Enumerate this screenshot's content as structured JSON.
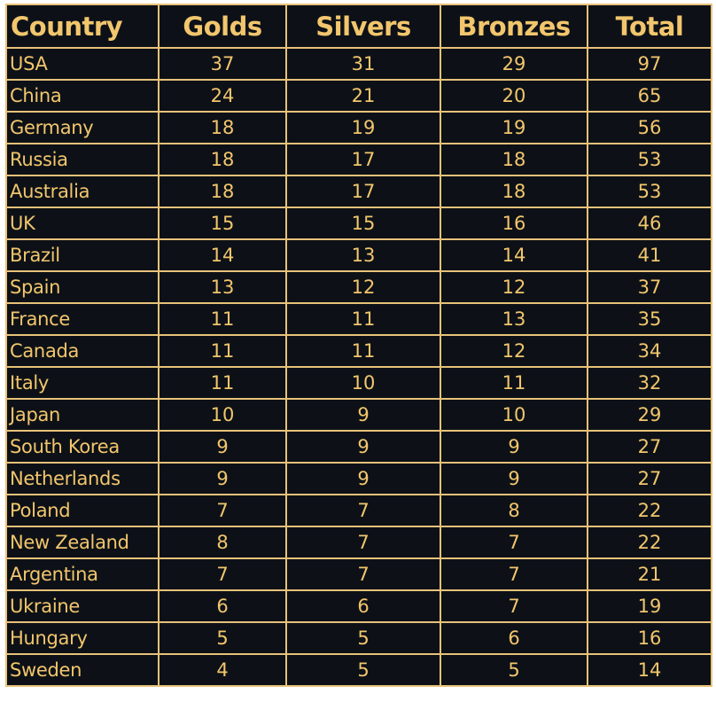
{
  "table": {
    "headers": {
      "country": "Country",
      "golds": "Golds",
      "silvers": "Silvers",
      "bronzes": "Bronzes",
      "total": "Total"
    },
    "rows": [
      {
        "country": "USA",
        "golds": "37",
        "silvers": "31",
        "bronzes": "29",
        "total": "97"
      },
      {
        "country": "China",
        "golds": "24",
        "silvers": "21",
        "bronzes": "20",
        "total": "65"
      },
      {
        "country": "Germany",
        "golds": "18",
        "silvers": "19",
        "bronzes": "19",
        "total": "56"
      },
      {
        "country": "Russia",
        "golds": "18",
        "silvers": "17",
        "bronzes": "18",
        "total": "53"
      },
      {
        "country": "Australia",
        "golds": "18",
        "silvers": "17",
        "bronzes": "18",
        "total": "53"
      },
      {
        "country": "UK",
        "golds": "15",
        "silvers": "15",
        "bronzes": "16",
        "total": "46"
      },
      {
        "country": "Brazil",
        "golds": "14",
        "silvers": "13",
        "bronzes": "14",
        "total": "41"
      },
      {
        "country": "Spain",
        "golds": "13",
        "silvers": "12",
        "bronzes": "12",
        "total": "37"
      },
      {
        "country": "France",
        "golds": "11",
        "silvers": "11",
        "bronzes": "13",
        "total": "35"
      },
      {
        "country": "Canada",
        "golds": "11",
        "silvers": "11",
        "bronzes": "12",
        "total": "34"
      },
      {
        "country": "Italy",
        "golds": "11",
        "silvers": "10",
        "bronzes": "11",
        "total": "32"
      },
      {
        "country": "Japan",
        "golds": "10",
        "silvers": "9",
        "bronzes": "10",
        "total": "29"
      },
      {
        "country": "South Korea",
        "golds": "9",
        "silvers": "9",
        "bronzes": "9",
        "total": "27"
      },
      {
        "country": "Netherlands",
        "golds": "9",
        "silvers": "9",
        "bronzes": "9",
        "total": "27"
      },
      {
        "country": "Poland",
        "golds": "7",
        "silvers": "7",
        "bronzes": "8",
        "total": "22"
      },
      {
        "country": "New Zealand",
        "golds": "8",
        "silvers": "7",
        "bronzes": "7",
        "total": "22"
      },
      {
        "country": "Argentina",
        "golds": "7",
        "silvers": "7",
        "bronzes": "7",
        "total": "21"
      },
      {
        "country": "Ukraine",
        "golds": "6",
        "silvers": "6",
        "bronzes": "7",
        "total": "19"
      },
      {
        "country": "Hungary",
        "golds": "5",
        "silvers": "5",
        "bronzes": "6",
        "total": "16"
      },
      {
        "country": "Sweden",
        "golds": "4",
        "silvers": "5",
        "bronzes": "5",
        "total": "14"
      }
    ]
  },
  "colors": {
    "background": "#0d1117",
    "text": "#f2c66d",
    "grid": "#e8c27a"
  }
}
